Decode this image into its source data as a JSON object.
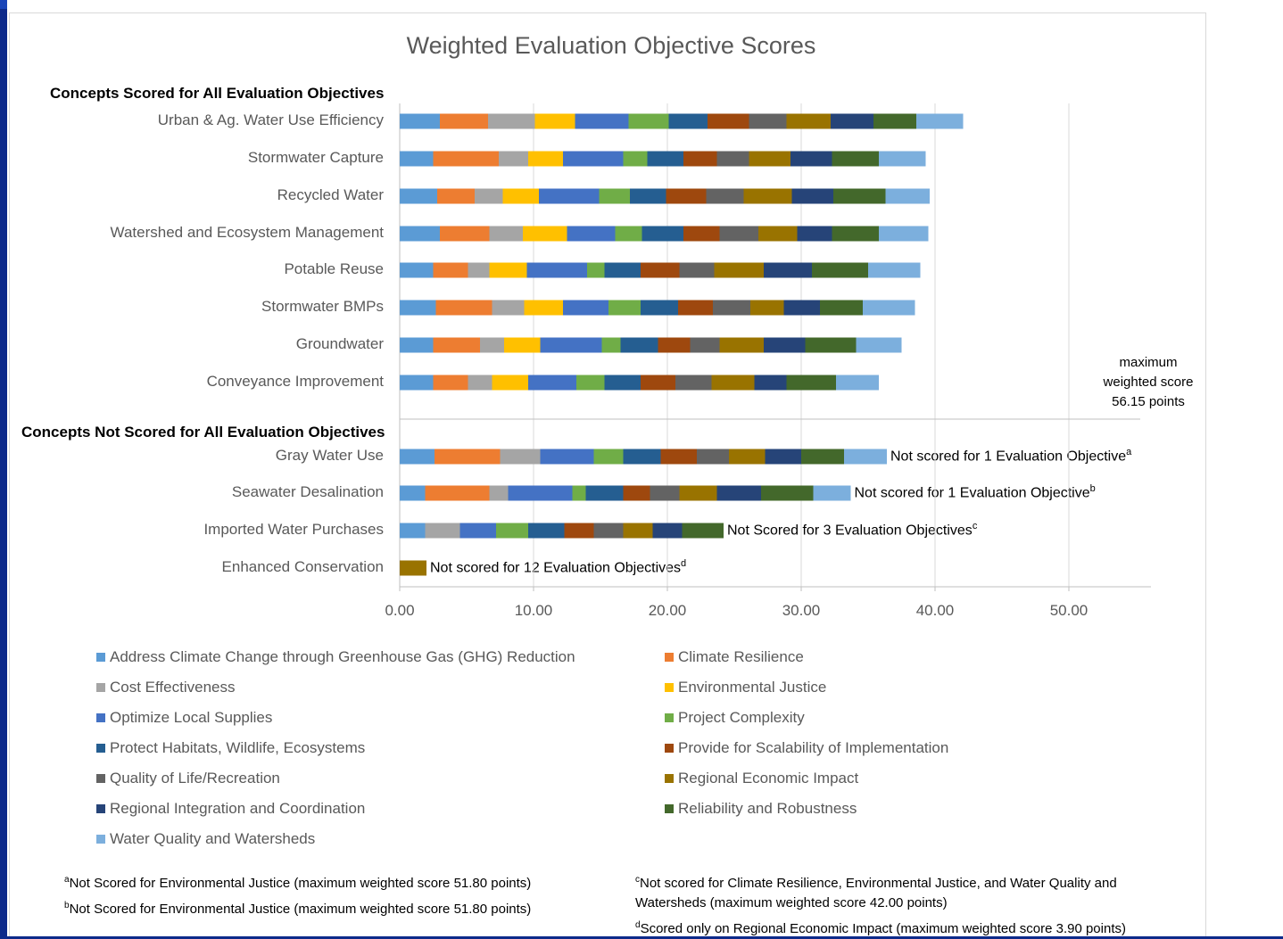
{
  "colors": {
    "Address Climate Change through Greenhouse Gas (GHG) Reduction": "#5b9bd5",
    "Climate Resilience": "#ed7d31",
    "Cost Effectiveness": "#a5a5a5",
    "Environmental Justice": "#ffc000",
    "Optimize Local Supplies": "#4472c4",
    "Project Complexity": "#70ad47",
    "Protect Habitats, Wildlife, Ecosystems": "#255e91",
    "Provide for Scalability of Implementation": "#9e480e",
    "Quality of Life/Recreation": "#636363",
    "Regional Economic Impact": "#997300",
    "Regional Integration and Coordination": "#264478",
    "Reliability and Robustness": "#43682b",
    "Water Quality and Watersheds": "#7cafdd"
  },
  "sections": {
    "scored": "Concepts Scored for All Evaluation Objectives",
    "not_scored": "Concepts Not Scored for All Evaluation Objectives"
  },
  "max_label": [
    "maximum",
    "weighted score",
    "56.15 points"
  ],
  "footnotes": {
    "a": "Not Scored for Environmental Justice (maximum weighted score  51.80 points)",
    "b": "Not Scored for Environmental Justice (maximum weighted score  51.80 points)",
    "c": "Not scored for Climate Resilience, Environmental Justice, and Water Quality and Watersheds (maximum weighted score  42.00 points)",
    "d": "Scored only on Regional Economic Impact (maximum weighted score  3.90 points)"
  },
  "chart_data": {
    "type": "bar",
    "orientation": "horizontal",
    "stacked": true,
    "title": "Weighted Evaluation Objective Scores",
    "xlim": [
      0,
      55
    ],
    "xticks": [
      "0.00",
      "10.00",
      "20.00",
      "30.00",
      "40.00",
      "50.00"
    ],
    "grid": true,
    "legend_position": "bottom",
    "series_names": [
      "Address Climate Change through Greenhouse Gas (GHG) Reduction",
      "Climate Resilience",
      "Cost Effectiveness",
      "Environmental Justice",
      "Optimize Local Supplies",
      "Project Complexity",
      "Protect Habitats, Wildlife, Ecosystems",
      "Provide for Scalability of Implementation",
      "Quality of Life/Recreation",
      "Regional Economic Impact",
      "Regional Integration and Coordination",
      "Reliability and Robustness",
      "Water Quality and Watersheds"
    ],
    "categories": [
      {
        "name": "Urban & Ag. Water Use Efficiency",
        "values": [
          3.0,
          3.6,
          3.5,
          3.0,
          4.0,
          3.0,
          2.9,
          3.1,
          2.8,
          3.3,
          3.2,
          3.2,
          3.5
        ]
      },
      {
        "name": "Stormwater Capture",
        "values": [
          2.5,
          4.9,
          2.2,
          2.6,
          4.5,
          1.8,
          2.7,
          2.5,
          2.4,
          3.1,
          3.1,
          3.5,
          3.5
        ]
      },
      {
        "name": "Recycled Water",
        "values": [
          2.8,
          2.8,
          2.1,
          2.7,
          4.5,
          2.3,
          2.7,
          3.0,
          2.8,
          3.6,
          3.1,
          3.9,
          3.3
        ]
      },
      {
        "name": "Watershed and Ecosystem Management",
        "values": [
          3.0,
          3.7,
          2.5,
          3.3,
          3.6,
          2.0,
          3.1,
          2.7,
          2.9,
          2.9,
          2.6,
          3.5,
          3.7
        ]
      },
      {
        "name": "Potable Reuse",
        "values": [
          2.5,
          2.6,
          1.6,
          2.8,
          4.5,
          1.3,
          2.7,
          2.9,
          2.6,
          3.7,
          3.6,
          4.2,
          3.9
        ]
      },
      {
        "name": "Stormwater BMPs",
        "values": [
          2.7,
          4.2,
          2.4,
          2.9,
          3.4,
          2.4,
          2.8,
          2.6,
          2.8,
          2.5,
          2.7,
          3.2,
          3.9
        ]
      },
      {
        "name": "Groundwater",
        "values": [
          2.5,
          3.5,
          1.8,
          2.7,
          4.6,
          1.4,
          2.8,
          2.4,
          2.2,
          3.3,
          3.1,
          3.8,
          3.4
        ]
      },
      {
        "name": "Conveyance Improvement",
        "values": [
          2.5,
          2.6,
          1.8,
          2.7,
          3.6,
          2.1,
          2.7,
          2.6,
          2.7,
          3.2,
          2.4,
          3.7,
          3.2
        ]
      },
      {
        "name": "Gray Water Use",
        "values": [
          2.6,
          4.9,
          3.0,
          0,
          4.0,
          2.2,
          2.8,
          2.7,
          2.4,
          2.7,
          2.7,
          3.2,
          3.2
        ],
        "note": "Not scored for 1 Evaluation Objective",
        "mark": "a"
      },
      {
        "name": "Seawater Desalination",
        "values": [
          1.9,
          4.8,
          1.4,
          0,
          4.8,
          1.0,
          2.8,
          2.0,
          2.2,
          2.8,
          3.3,
          3.9,
          2.8
        ],
        "note": "Not scored for 1 Evaluation Objective",
        "mark": "b"
      },
      {
        "name": "Imported Water Purchases",
        "values": [
          1.9,
          0,
          2.6,
          0,
          2.7,
          2.4,
          2.7,
          2.2,
          2.2,
          2.2,
          2.2,
          3.1,
          0
        ],
        "note": "Not Scored for 3 Evaluation Objectives",
        "mark": "c"
      },
      {
        "name": "Enhanced Conservation",
        "values": [
          0,
          0,
          0,
          0,
          0,
          0,
          0,
          0,
          0,
          2.0,
          0,
          0,
          0
        ],
        "note": "Not scored for 12 Evaluation Objectives",
        "mark": "d"
      }
    ]
  }
}
